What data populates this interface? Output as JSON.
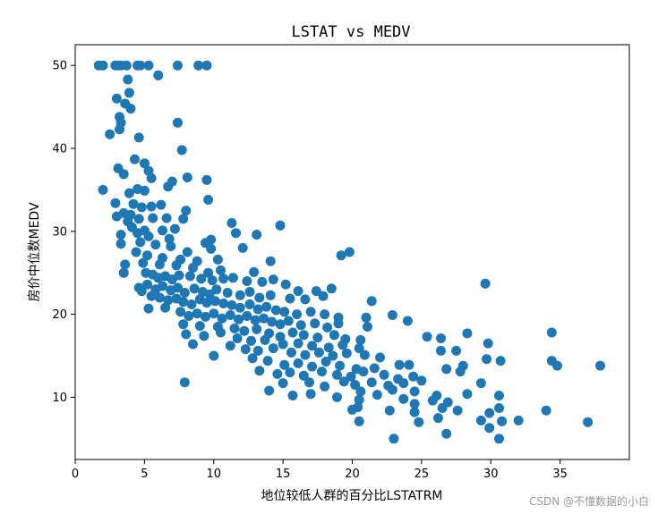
{
  "chart_data": {
    "type": "scatter",
    "title": "LSTAT vs MEDV",
    "xlabel": "地位较低人群的百分比LSTATRM",
    "ylabel": "房价中位数MEDV",
    "xlim": [
      0,
      40
    ],
    "ylim": [
      2.5,
      52.5
    ],
    "xticks": [
      0,
      5,
      10,
      15,
      20,
      25,
      30,
      35
    ],
    "yticks": [
      10,
      20,
      30,
      40,
      50
    ],
    "grid": false,
    "color": "#1f77b4",
    "points": [
      [
        1.7,
        50
      ],
      [
        2.0,
        50
      ],
      [
        2.9,
        50
      ],
      [
        3.1,
        50
      ],
      [
        3.3,
        50
      ],
      [
        3.7,
        50
      ],
      [
        4.5,
        50
      ],
      [
        4.7,
        50
      ],
      [
        5.3,
        50
      ],
      [
        7.4,
        50
      ],
      [
        8.9,
        50
      ],
      [
        9.5,
        50
      ],
      [
        6.0,
        48.8
      ],
      [
        3.8,
        48.3
      ],
      [
        3.9,
        46.7
      ],
      [
        3.0,
        46.0
      ],
      [
        3.6,
        45.4
      ],
      [
        4.0,
        44.8
      ],
      [
        3.2,
        43.8
      ],
      [
        3.3,
        43.1
      ],
      [
        3.2,
        42.3
      ],
      [
        7.4,
        43.1
      ],
      [
        2.5,
        41.7
      ],
      [
        4.6,
        41.3
      ],
      [
        7.7,
        39.8
      ],
      [
        4.3,
        38.7
      ],
      [
        5.0,
        38.2
      ],
      [
        3.1,
        37.6
      ],
      [
        5.3,
        37.3
      ],
      [
        3.5,
        36.9
      ],
      [
        8.1,
        36.5
      ],
      [
        5.5,
        36.4
      ],
      [
        9.5,
        36.2
      ],
      [
        7.0,
        36.0
      ],
      [
        6.7,
        35.4
      ],
      [
        2.0,
        35.0
      ],
      [
        4.5,
        35.1
      ],
      [
        5.0,
        34.9
      ],
      [
        3.9,
        34.6
      ],
      [
        9.6,
        33.8
      ],
      [
        2.9,
        33.4
      ],
      [
        4.2,
        33.3
      ],
      [
        5.5,
        33.0
      ],
      [
        6.2,
        33.2
      ],
      [
        4.8,
        32.9
      ],
      [
        8.0,
        32.5
      ],
      [
        3.5,
        32.2
      ],
      [
        4.0,
        32.0
      ],
      [
        3.0,
        31.8
      ],
      [
        5.6,
        31.6
      ],
      [
        6.6,
        31.6
      ],
      [
        7.8,
        31.5
      ],
      [
        3.8,
        31.2
      ],
      [
        4.6,
        31.5
      ],
      [
        11.3,
        31.0
      ],
      [
        4.1,
        30.5
      ],
      [
        5.0,
        30.1
      ],
      [
        6.3,
        30.1
      ],
      [
        14.8,
        30.7
      ],
      [
        7.2,
        30.3
      ],
      [
        3.3,
        29.6
      ],
      [
        4.5,
        29.8
      ],
      [
        5.3,
        29.4
      ],
      [
        6.8,
        29.1
      ],
      [
        9.8,
        29.0
      ],
      [
        11.6,
        29.8
      ],
      [
        13.1,
        29.6
      ],
      [
        3.3,
        28.5
      ],
      [
        4.7,
        28.7
      ],
      [
        5.8,
        28.4
      ],
      [
        6.9,
        28.2
      ],
      [
        9.4,
        28.6
      ],
      [
        12.1,
        28.0
      ],
      [
        8.1,
        27.5
      ],
      [
        9.8,
        27.9
      ],
      [
        19.8,
        27.5
      ],
      [
        19.2,
        27.1
      ],
      [
        4.4,
        27.5
      ],
      [
        5.2,
        27.1
      ],
      [
        6.3,
        26.8
      ],
      [
        7.6,
        26.6
      ],
      [
        8.8,
        26.4
      ],
      [
        10.3,
        26.6
      ],
      [
        3.6,
        26.0
      ],
      [
        4.9,
        26.2
      ],
      [
        6.1,
        26.0
      ],
      [
        7.3,
        25.9
      ],
      [
        8.5,
        25.6
      ],
      [
        9.6,
        25.0
      ],
      [
        10.5,
        25.3
      ],
      [
        12.9,
        25.1
      ],
      [
        14.1,
        26.4
      ],
      [
        3.5,
        25.0
      ],
      [
        5.1,
        25.0
      ],
      [
        5.6,
        24.8
      ],
      [
        6.0,
        24.4
      ],
      [
        6.5,
        24.6
      ],
      [
        7.0,
        24.2
      ],
      [
        7.5,
        24.7
      ],
      [
        8.3,
        24.6
      ],
      [
        9.1,
        24.3
      ],
      [
        9.9,
        24.1
      ],
      [
        10.7,
        24.3
      ],
      [
        11.4,
        24.4
      ],
      [
        12.4,
        24.0
      ],
      [
        13.5,
        23.9
      ],
      [
        14.3,
        24.2
      ],
      [
        15.2,
        23.6
      ],
      [
        16.1,
        22.8
      ],
      [
        17.4,
        22.8
      ],
      [
        18.5,
        23.1
      ],
      [
        29.6,
        23.7
      ],
      [
        4.6,
        23.2
      ],
      [
        5.2,
        23.6
      ],
      [
        5.8,
        23.0
      ],
      [
        6.3,
        23.4
      ],
      [
        6.9,
        22.9
      ],
      [
        7.4,
        23.2
      ],
      [
        7.9,
        22.6
      ],
      [
        8.6,
        23.1
      ],
      [
        9.2,
        22.7
      ],
      [
        9.7,
        22.4
      ],
      [
        10.2,
        23.0
      ],
      [
        11.0,
        22.6
      ],
      [
        11.9,
        22.3
      ],
      [
        12.6,
        22.7
      ],
      [
        13.3,
        22.0
      ],
      [
        14.1,
        22.3
      ],
      [
        15.5,
        21.9
      ],
      [
        16.6,
        21.8
      ],
      [
        17.9,
        22.2
      ],
      [
        21.4,
        21.6
      ],
      [
        4.8,
        22.8
      ],
      [
        5.5,
        22.2
      ],
      [
        6.1,
        22.0
      ],
      [
        6.7,
        21.7
      ],
      [
        7.3,
        21.9
      ],
      [
        7.8,
        21.5
      ],
      [
        8.4,
        21.2
      ],
      [
        9.0,
        21.8
      ],
      [
        9.5,
        21.4
      ],
      [
        10.1,
        21.6
      ],
      [
        10.7,
        21.3
      ],
      [
        11.3,
        21.1
      ],
      [
        11.9,
        20.8
      ],
      [
        12.6,
        21.2
      ],
      [
        13.2,
        20.6
      ],
      [
        13.8,
        20.9
      ],
      [
        14.5,
        20.5
      ],
      [
        15.1,
        20.3
      ],
      [
        16.0,
        20.0
      ],
      [
        17.0,
        20.3
      ],
      [
        18.0,
        20.0
      ],
      [
        19.0,
        19.6
      ],
      [
        21.0,
        19.6
      ],
      [
        22.9,
        19.9
      ],
      [
        24.0,
        19.2
      ],
      [
        5.3,
        20.7
      ],
      [
        6.5,
        20.8
      ],
      [
        7.6,
        20.3
      ],
      [
        8.2,
        19.8
      ],
      [
        8.8,
        20.1
      ],
      [
        9.4,
        19.7
      ],
      [
        10.0,
        20.1
      ],
      [
        10.6,
        19.5
      ],
      [
        11.2,
        19.9
      ],
      [
        11.8,
        19.4
      ],
      [
        12.4,
        19.8
      ],
      [
        13.0,
        19.3
      ],
      [
        13.6,
        19.5
      ],
      [
        14.2,
        19.1
      ],
      [
        14.8,
        18.8
      ],
      [
        15.4,
        19.2
      ],
      [
        16.3,
        18.7
      ],
      [
        17.3,
        18.9
      ],
      [
        18.2,
        18.4
      ],
      [
        19.0,
        18.9
      ],
      [
        21.1,
        18.5
      ],
      [
        7.8,
        18.8
      ],
      [
        9.0,
        18.6
      ],
      [
        10.3,
        18.5
      ],
      [
        11.5,
        18.3
      ],
      [
        12.2,
        18.0
      ],
      [
        13.1,
        18.2
      ],
      [
        14.0,
        17.7
      ],
      [
        14.8,
        17.3
      ],
      [
        15.7,
        17.8
      ],
      [
        16.5,
        17.5
      ],
      [
        17.5,
        17.2
      ],
      [
        18.7,
        17.5
      ],
      [
        19.5,
        17.0
      ],
      [
        20.6,
        16.9
      ],
      [
        8.0,
        17.6
      ],
      [
        9.3,
        17.4
      ],
      [
        10.5,
        17.8
      ],
      [
        11.7,
        17.1
      ],
      [
        12.7,
        16.8
      ],
      [
        13.7,
        16.9
      ],
      [
        15.0,
        16.4
      ],
      [
        16.1,
        16.5
      ],
      [
        17.1,
        16.2
      ],
      [
        18.3,
        16.0
      ],
      [
        19.3,
        16.3
      ],
      [
        20.5,
        15.9
      ],
      [
        25.4,
        17.3
      ],
      [
        26.4,
        17.1
      ],
      [
        28.3,
        17.7
      ],
      [
        34.4,
        17.8
      ],
      [
        29.8,
        16.5
      ],
      [
        8.5,
        16.4
      ],
      [
        11.2,
        16.2
      ],
      [
        12.3,
        15.8
      ],
      [
        13.2,
        15.6
      ],
      [
        14.3,
        15.9
      ],
      [
        15.6,
        15.4
      ],
      [
        16.6,
        15.1
      ],
      [
        17.6,
        15.4
      ],
      [
        18.6,
        15.0
      ],
      [
        19.6,
        15.3
      ],
      [
        20.9,
        15.1
      ],
      [
        22.0,
        14.8
      ],
      [
        26.4,
        15.6
      ],
      [
        27.5,
        15.6
      ],
      [
        10.0,
        15.0
      ],
      [
        12.8,
        14.7
      ],
      [
        13.9,
        14.4
      ],
      [
        15.1,
        13.9
      ],
      [
        16.1,
        14.1
      ],
      [
        17.1,
        13.7
      ],
      [
        18.1,
        14.3
      ],
      [
        19.1,
        13.8
      ],
      [
        20.3,
        13.4
      ],
      [
        21.6,
        13.5
      ],
      [
        24.1,
        13.9
      ],
      [
        23.4,
        13.9
      ],
      [
        28.0,
        13.8
      ],
      [
        29.7,
        14.6
      ],
      [
        30.7,
        14.4
      ],
      [
        34.4,
        14.4
      ],
      [
        34.8,
        13.8
      ],
      [
        37.9,
        13.8
      ],
      [
        13.3,
        13.2
      ],
      [
        14.6,
        12.8
      ],
      [
        15.5,
        13.0
      ],
      [
        16.5,
        12.6
      ],
      [
        17.8,
        13.1
      ],
      [
        18.9,
        12.7
      ],
      [
        19.9,
        12.5
      ],
      [
        20.8,
        13.1
      ],
      [
        22.3,
        12.7
      ],
      [
        23.3,
        12.2
      ],
      [
        24.4,
        12.5
      ],
      [
        26.8,
        13.4
      ],
      [
        27.8,
        13.1
      ],
      [
        15.0,
        11.7
      ],
      [
        16.9,
        11.8
      ],
      [
        18.0,
        11.3
      ],
      [
        19.4,
        11.9
      ],
      [
        20.2,
        11.5
      ],
      [
        21.4,
        11.8
      ],
      [
        22.6,
        11.4
      ],
      [
        23.7,
        11.7
      ],
      [
        25.0,
        12.0
      ],
      [
        29.3,
        11.7
      ],
      [
        7.9,
        11.8
      ],
      [
        14.0,
        10.8
      ],
      [
        15.7,
        10.2
      ],
      [
        17.0,
        10.4
      ],
      [
        18.9,
        10.0
      ],
      [
        20.6,
        10.7
      ],
      [
        21.8,
        10.3
      ],
      [
        22.9,
        10.9
      ],
      [
        24.5,
        10.7
      ],
      [
        26.1,
        10.2
      ],
      [
        28.3,
        10.4
      ],
      [
        30.6,
        10.2
      ],
      [
        20.5,
        9.7
      ],
      [
        23.7,
        9.8
      ],
      [
        24.5,
        9.2
      ],
      [
        25.8,
        9.6
      ],
      [
        26.9,
        9.4
      ],
      [
        20.0,
        8.5
      ],
      [
        20.4,
        8.8
      ],
      [
        22.7,
        8.4
      ],
      [
        24.5,
        8.2
      ],
      [
        26.5,
        8.7
      ],
      [
        27.6,
        8.4
      ],
      [
        30.6,
        8.7
      ],
      [
        34.0,
        8.4
      ],
      [
        20.5,
        7.1
      ],
      [
        24.8,
        7.0
      ],
      [
        26.2,
        7.5
      ],
      [
        29.3,
        7.2
      ],
      [
        29.9,
        8.1
      ],
      [
        30.8,
        7.1
      ],
      [
        32.0,
        7.2
      ],
      [
        37.0,
        7.0
      ],
      [
        26.8,
        5.6
      ],
      [
        23.0,
        5.0
      ],
      [
        29.9,
        6.3
      ],
      [
        30.6,
        5.0
      ]
    ]
  }
}
